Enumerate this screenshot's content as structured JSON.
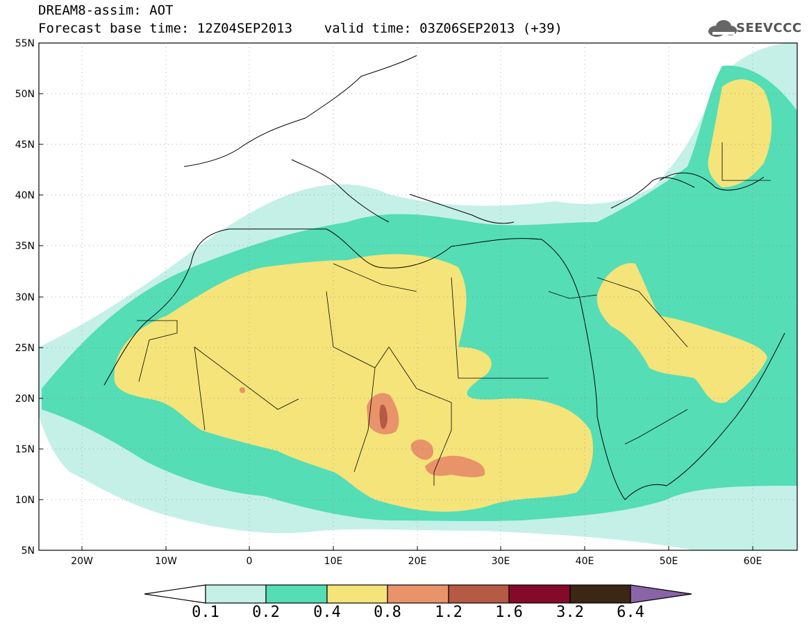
{
  "header": {
    "title_line1": "DREAM8-assim: AOT",
    "title_line2": "Forecast base time: 12Z04SEP2013    valid time: 03Z06SEP2013 (+39)"
  },
  "logo": {
    "text": "SEEVCCC",
    "icon": "cloud-icon"
  },
  "map": {
    "lat_labels": [
      "55N",
      "50N",
      "45N",
      "40N",
      "35N",
      "30N",
      "25N",
      "20N",
      "15N",
      "10N",
      "5N"
    ],
    "lon_labels": [
      "20W",
      "10W",
      "0",
      "10E",
      "20E",
      "30E",
      "40E",
      "50E",
      "60E"
    ]
  },
  "colorbar": {
    "labels": [
      "0.1",
      "0.2",
      "0.4",
      "0.8",
      "1.2",
      "1.6",
      "3.2",
      "6.4"
    ],
    "colors": [
      "#ffffff",
      "#c4f0e8",
      "#55ddb5",
      "#f5e47a",
      "#e8936a",
      "#b45a45",
      "#840a2a",
      "#3c2614",
      "#8a64a8"
    ]
  },
  "levels": {
    "c1": "#c4f0e8",
    "c2": "#55ddb5",
    "c3": "#f5e47a",
    "c4": "#e8936a",
    "c5": "#b45a45"
  }
}
